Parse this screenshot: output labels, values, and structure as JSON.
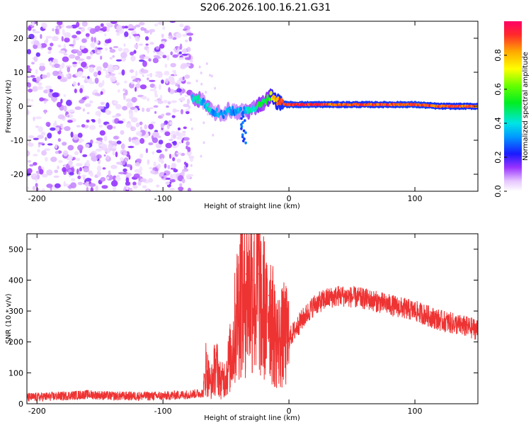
{
  "figure": {
    "title": "S206.2026.100.16.21.G31"
  },
  "chart_data": [
    {
      "type": "heatmap",
      "name": "spectrogram",
      "xlabel": "Height of straight line (km)",
      "ylabel": "Frequency (Hz)",
      "xlim": [
        -208,
        150
      ],
      "ylim": [
        -25,
        25
      ],
      "xticks": [
        -200,
        -100,
        0,
        100
      ],
      "yticks": [
        -20,
        -10,
        0,
        10,
        20
      ],
      "noise_region_x": [
        -208,
        -77
      ],
      "ridge": {
        "x": [
          -77,
          -72,
          -68,
          -64,
          -60,
          -56,
          -52,
          -48,
          -44,
          -40,
          -36,
          -32,
          -28,
          -24,
          -20,
          -16,
          -14,
          -10,
          -6,
          -2,
          0,
          20,
          40,
          60,
          80,
          100,
          120,
          150
        ],
        "freq": [
          2.5,
          2,
          1.5,
          -0.5,
          -2,
          -2,
          -2.5,
          -1,
          -1.5,
          -2,
          -1,
          -1.5,
          -0.5,
          0.5,
          1,
          2.5,
          3,
          1.5,
          1,
          0.5,
          0.5,
          0.5,
          0.5,
          0.5,
          0.5,
          0.5,
          0,
          0
        ],
        "amplitude": [
          0.4,
          0.5,
          0.3,
          0.5,
          0.3,
          0.4,
          0.3,
          0.4,
          0.3,
          0.4,
          0.3,
          0.5,
          0.4,
          0.6,
          0.5,
          0.6,
          0.8,
          0.9,
          0.95,
          1,
          1,
          1,
          0.95,
          0.95,
          0.95,
          1,
          0.95,
          0.95
        ]
      },
      "colorbar": {
        "label": "Normalized spectral amplitude",
        "range": [
          0,
          1
        ],
        "ticks": [
          "0.0",
          "0.2",
          "0.4",
          "0.6",
          "0.8"
        ],
        "tick_values": [
          0,
          0.2,
          0.4,
          0.6,
          0.8
        ]
      }
    },
    {
      "type": "line",
      "name": "snr",
      "xlabel": "Height of straight line (km)",
      "ylabel": "SNR (10 * v/v)",
      "xlim": [
        -208,
        150
      ],
      "ylim": [
        0,
        550
      ],
      "xticks": [
        -200,
        -100,
        0,
        100
      ],
      "yticks": [
        0,
        100,
        200,
        300,
        400,
        500
      ],
      "color": "#ee3333",
      "series": [
        {
          "name": "SNR",
          "x": [
            -208,
            -180,
            -160,
            -140,
            -120,
            -100,
            -80,
            -68,
            -66,
            -62,
            -58,
            -54,
            -50,
            -46,
            -44,
            -42,
            -40,
            -38,
            -36,
            -34,
            -32,
            -30,
            -28,
            -26,
            -24,
            -22,
            -20,
            -18,
            -16,
            -12,
            -8,
            -4,
            0,
            10,
            20,
            30,
            40,
            60,
            80,
            100,
            120,
            150
          ],
          "y": [
            20,
            25,
            30,
            25,
            25,
            25,
            30,
            35,
            120,
            60,
            130,
            70,
            90,
            160,
            200,
            280,
            320,
            380,
            300,
            420,
            350,
            380,
            400,
            300,
            420,
            280,
            320,
            260,
            350,
            230,
            200,
            220,
            210,
            270,
            320,
            340,
            350,
            340,
            320,
            300,
            270,
            240
          ]
        }
      ]
    }
  ]
}
